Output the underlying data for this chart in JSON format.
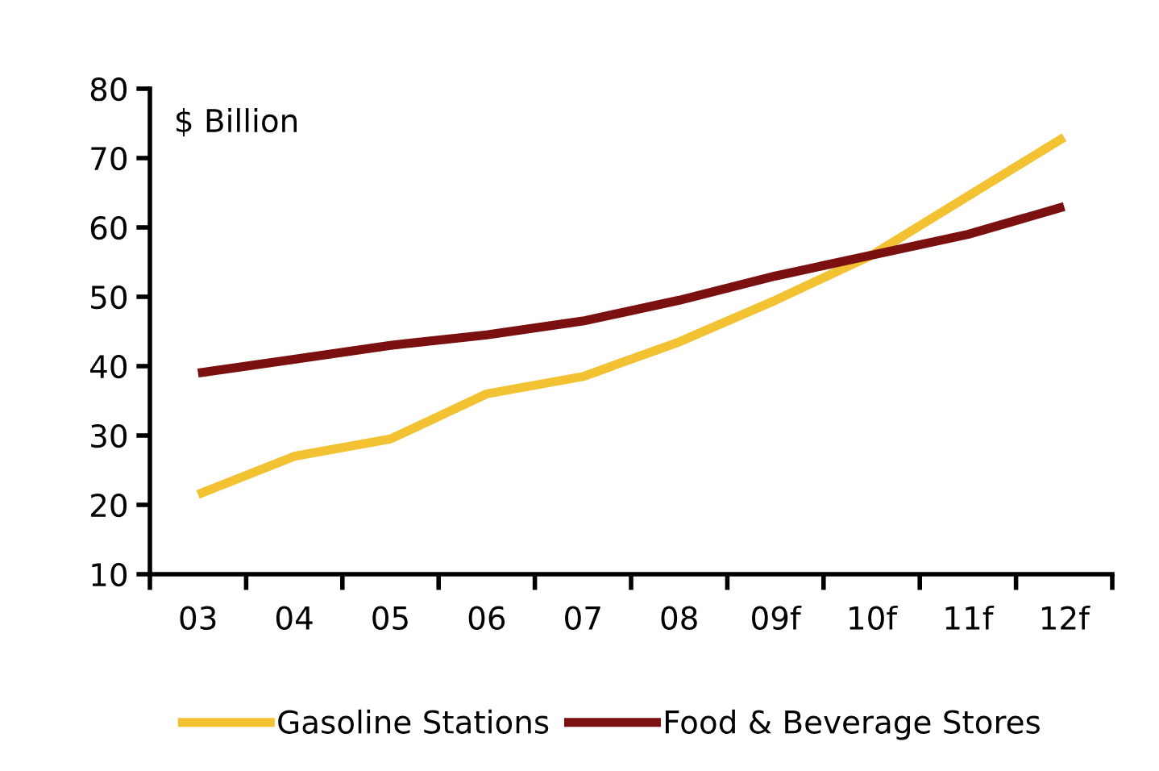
{
  "chart_data": {
    "type": "line",
    "categories": [
      "03",
      "04",
      "05",
      "06",
      "07",
      "08",
      "09f",
      "10f",
      "11f",
      "12f"
    ],
    "series": [
      {
        "name": "Gasoline Stations",
        "color": "#f2c232",
        "values": [
          21.5,
          27,
          29.5,
          36,
          38.5,
          43.5,
          49.5,
          56,
          64.5,
          73
        ]
      },
      {
        "name": "Food & Beverage Stores",
        "color": "#7a1010",
        "values": [
          39,
          41,
          43,
          44.5,
          46.5,
          49.5,
          53,
          56,
          59,
          63
        ]
      }
    ],
    "ylim": [
      10,
      80
    ],
    "yticks": [
      10,
      20,
      30,
      40,
      50,
      60,
      70,
      80
    ],
    "grid": false,
    "legend": "bottom",
    "marker": "none",
    "line_style": "solid",
    "annotations": [
      "$ Billion"
    ]
  }
}
